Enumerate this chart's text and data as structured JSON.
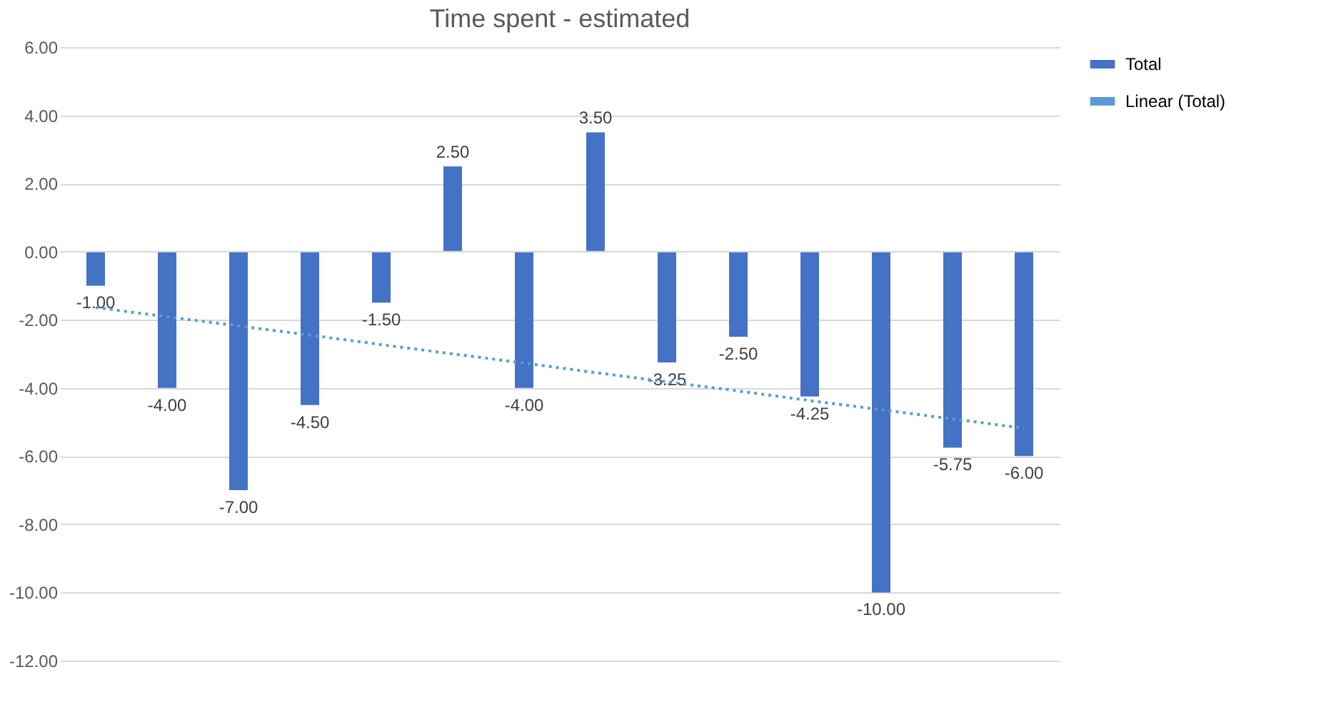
{
  "chart_data": {
    "type": "bar",
    "title": "Time spent - estimated",
    "categories": [
      null,
      null,
      null,
      null,
      null,
      null,
      null,
      null,
      null,
      null,
      null,
      null,
      null,
      null
    ],
    "series": [
      {
        "name": "Total",
        "color": "#4472c4",
        "values": [
          -1,
          -4,
          -7,
          -4.5,
          -1.5,
          2.5,
          -4,
          3.5,
          -3.25,
          -2.5,
          -4.25,
          -10,
          -5.75,
          -6
        ],
        "value_labels": [
          "-1.00",
          "-4.00",
          "-7.00",
          "-4.50",
          "-1.50",
          "2.50",
          "-4.00",
          "3.50",
          "-3.25",
          "-2.50",
          "-4.25",
          "-10.00",
          "-5.75",
          "-6.00"
        ]
      },
      {
        "name": "Linear (Total)",
        "type": "line",
        "color": "#5b9bd5",
        "line_style": "dotted",
        "values": [
          -1.64,
          -1.91,
          -2.18,
          -2.45,
          -2.73,
          -3.0,
          -3.27,
          -3.55,
          -3.82,
          -4.09,
          -4.37,
          -4.64,
          -4.91,
          -5.18
        ]
      }
    ],
    "ylim": [
      -12,
      6
    ],
    "yticks": [
      {
        "value": -12,
        "label": "-12.00"
      },
      {
        "value": -10,
        "label": "-10.00"
      },
      {
        "value": -8,
        "label": "-8.00"
      },
      {
        "value": -6,
        "label": "-6.00"
      },
      {
        "value": -4,
        "label": "-4.00"
      },
      {
        "value": -2,
        "label": "-2.00"
      },
      {
        "value": 0,
        "label": "0.00"
      },
      {
        "value": 2,
        "label": "2.00"
      },
      {
        "value": 4,
        "label": "4.00"
      },
      {
        "value": 6,
        "label": "6.00"
      }
    ],
    "grid": "y",
    "legend": "right",
    "tick_labels": "y"
  }
}
